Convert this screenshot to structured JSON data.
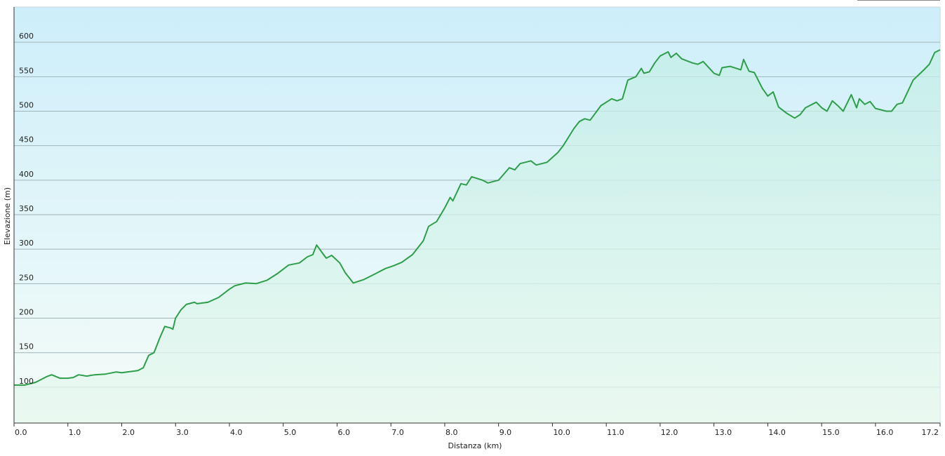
{
  "chart_data": {
    "type": "area-line",
    "x_label": "Distanza  (km)",
    "y_label": "Elevazione (m)",
    "x": [
      0.0,
      0.2,
      0.4,
      0.6,
      0.7,
      0.85,
      1.0,
      1.1,
      1.2,
      1.35,
      1.5,
      1.7,
      1.9,
      2.0,
      2.3,
      2.4,
      2.5,
      2.6,
      2.7,
      2.8,
      2.9,
      2.95,
      3.0,
      3.1,
      3.2,
      3.35,
      3.4,
      3.6,
      3.8,
      4.0,
      4.1,
      4.3,
      4.5,
      4.7,
      4.9,
      5.1,
      5.3,
      5.45,
      5.55,
      5.62,
      5.75,
      5.8,
      5.9,
      6.05,
      6.15,
      6.25,
      6.3,
      6.5,
      6.7,
      6.9,
      7.05,
      7.2,
      7.4,
      7.6,
      7.7,
      7.85,
      8.0,
      8.1,
      8.15,
      8.3,
      8.4,
      8.5,
      8.7,
      8.8,
      9.0,
      9.2,
      9.3,
      9.4,
      9.6,
      9.7,
      9.9,
      10.1,
      10.2,
      10.4,
      10.5,
      10.6,
      10.7,
      10.9,
      11.1,
      11.2,
      11.3,
      11.4,
      11.55,
      11.65,
      11.7,
      11.8,
      11.9,
      12.0,
      12.15,
      12.2,
      12.3,
      12.4,
      12.6,
      12.7,
      12.8,
      13.0,
      13.1,
      13.15,
      13.3,
      13.5,
      13.55,
      13.65,
      13.75,
      13.9,
      14.0,
      14.1,
      14.2,
      14.35,
      14.5,
      14.6,
      14.7,
      14.9,
      15.0,
      15.1,
      15.2,
      15.3,
      15.4,
      15.55,
      15.65,
      15.7,
      15.8,
      15.9,
      16.0,
      16.1,
      16.2,
      16.3,
      16.4,
      16.5,
      16.7,
      16.9,
      17.0,
      17.1,
      17.2
    ],
    "series": [
      {
        "color": "#2e9e4a",
        "values": [
          103,
          103,
          107,
          115,
          118,
          113,
          113,
          114,
          118,
          116,
          118,
          119,
          122,
          121,
          124,
          128,
          146,
          150,
          170,
          188,
          186,
          184,
          200,
          212,
          220,
          223,
          221,
          223,
          230,
          242,
          247,
          251,
          250,
          255,
          265,
          277,
          280,
          289,
          292,
          306,
          292,
          287,
          291,
          280,
          266,
          256,
          251,
          256,
          264,
          272,
          276,
          281,
          292,
          312,
          333,
          340,
          360,
          375,
          370,
          395,
          393,
          405,
          400,
          396,
          400,
          418,
          415,
          424,
          428,
          422,
          426,
          440,
          450,
          475,
          485,
          489,
          487,
          508,
          518,
          515,
          518,
          545,
          550,
          562,
          555,
          557,
          570,
          580,
          586,
          578,
          584,
          576,
          570,
          568,
          572,
          555,
          552,
          563,
          565,
          560,
          575,
          558,
          556,
          533,
          522,
          528,
          506,
          497,
          490,
          495,
          505,
          513,
          505,
          500,
          515,
          508,
          500,
          524,
          505,
          518,
          510,
          514,
          504,
          502,
          500,
          500,
          510,
          512,
          545,
          560,
          568,
          585,
          589
        ]
      }
    ],
    "xlim": [
      0,
      17.2
    ],
    "ylim": [
      48,
      651
    ],
    "xticks": [
      {
        "value": 0,
        "label": "0.0"
      },
      {
        "value": 1,
        "label": "1.0"
      },
      {
        "value": 2,
        "label": "2.0"
      },
      {
        "value": 3,
        "label": "3.0"
      },
      {
        "value": 4,
        "label": "4.0"
      },
      {
        "value": 5,
        "label": "5.0"
      },
      {
        "value": 6,
        "label": "6.0"
      },
      {
        "value": 7,
        "label": "7.0"
      },
      {
        "value": 8,
        "label": "8.0"
      },
      {
        "value": 9,
        "label": "9.0"
      },
      {
        "value": 10,
        "label": "10.0"
      },
      {
        "value": 11,
        "label": "11.0"
      },
      {
        "value": 12,
        "label": "12.0"
      },
      {
        "value": 13,
        "label": "13.0"
      },
      {
        "value": 14,
        "label": "14.0"
      },
      {
        "value": 15,
        "label": "15.0"
      },
      {
        "value": 16,
        "label": "16.0"
      },
      {
        "value": 17.2,
        "label": "17.2"
      }
    ],
    "yticks": [
      100,
      150,
      200,
      250,
      300,
      350,
      400,
      450,
      500,
      550,
      600
    ],
    "grid": true
  }
}
